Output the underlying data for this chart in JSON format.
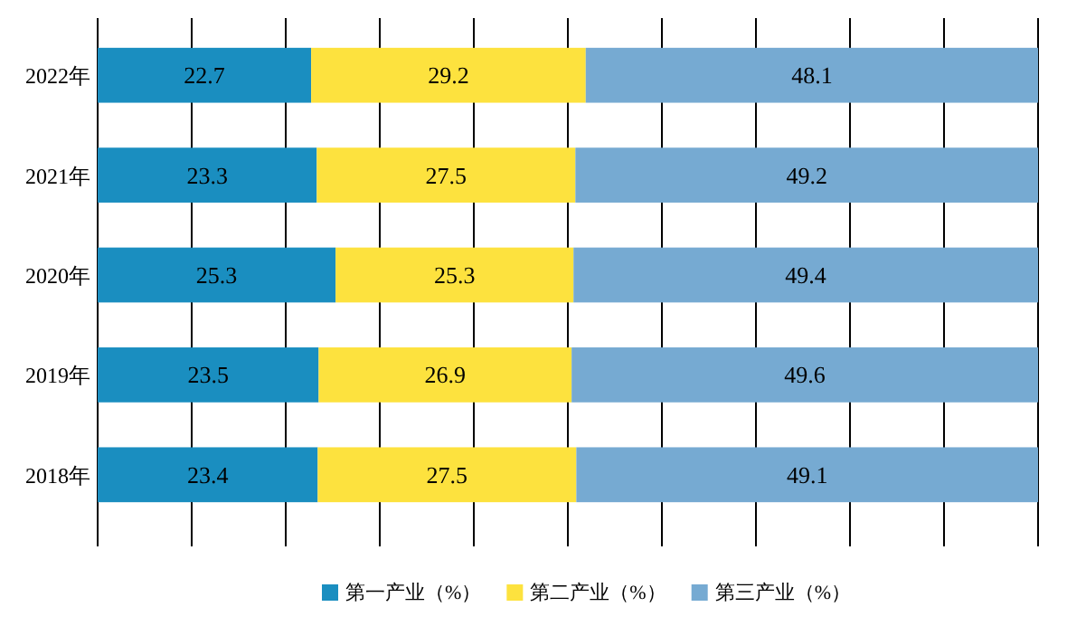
{
  "chart_data": {
    "type": "bar",
    "orientation": "horizontal",
    "stacked": true,
    "categories": [
      "2022年",
      "2021年",
      "2020年",
      "2019年",
      "2018年"
    ],
    "series": [
      {
        "name": "第一产业（%）",
        "color": "#1a8ec0",
        "values": [
          22.7,
          23.3,
          25.3,
          23.5,
          23.4
        ]
      },
      {
        "name": "第二产业（%）",
        "color": "#fde23e",
        "values": [
          29.2,
          27.5,
          25.3,
          26.9,
          27.5
        ]
      },
      {
        "name": "第三产业（%）",
        "color": "#76aad2",
        "values": [
          48.1,
          49.2,
          49.4,
          49.6,
          49.1
        ]
      }
    ],
    "xlim": [
      0,
      100
    ],
    "xticks": [
      {
        "value": 0,
        "label": null
      },
      {
        "value": 10,
        "label": null
      },
      {
        "value": 20,
        "label": null
      },
      {
        "value": 30,
        "label": null
      },
      {
        "value": 40,
        "label": null
      },
      {
        "value": 50,
        "label": null
      },
      {
        "value": 60,
        "label": null
      },
      {
        "value": 70,
        "label": null
      },
      {
        "value": 80,
        "label": null
      },
      {
        "value": 90,
        "label": null
      },
      {
        "value": 100,
        "label": null
      }
    ],
    "tick_labels": "y",
    "grid": "x",
    "data_labels": true,
    "legend": "bottom"
  }
}
